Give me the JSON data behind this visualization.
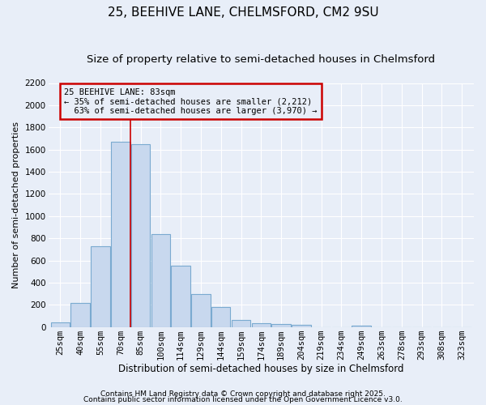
{
  "title1": "25, BEEHIVE LANE, CHELMSFORD, CM2 9SU",
  "title2": "Size of property relative to semi-detached houses in Chelmsford",
  "xlabel": "Distribution of semi-detached houses by size in Chelmsford",
  "ylabel": "Number of semi-detached properties",
  "categories": [
    "25sqm",
    "40sqm",
    "55sqm",
    "70sqm",
    "85sqm",
    "100sqm",
    "114sqm",
    "129sqm",
    "144sqm",
    "159sqm",
    "174sqm",
    "189sqm",
    "204sqm",
    "219sqm",
    "234sqm",
    "249sqm",
    "263sqm",
    "278sqm",
    "293sqm",
    "308sqm",
    "323sqm"
  ],
  "values": [
    40,
    220,
    730,
    1670,
    1650,
    840,
    555,
    295,
    180,
    65,
    35,
    25,
    20,
    0,
    0,
    15,
    0,
    0,
    0,
    0,
    0
  ],
  "bar_color": "#c8d8ee",
  "bar_edge_color": "#7aaad0",
  "vline_color": "#cc0000",
  "annotation_title": "25 BEEHIVE LANE: 83sqm",
  "annotation_line1": "← 35% of semi-detached houses are smaller (2,212)",
  "annotation_line2": "  63% of semi-detached houses are larger (3,970) →",
  "annotation_box_edge": "#cc0000",
  "ylim": [
    0,
    2200
  ],
  "yticks": [
    0,
    200,
    400,
    600,
    800,
    1000,
    1200,
    1400,
    1600,
    1800,
    2000,
    2200
  ],
  "background_color": "#e8eef8",
  "footer1": "Contains HM Land Registry data © Crown copyright and database right 2025.",
  "footer2": "Contains public sector information licensed under the Open Government Licence v3.0.",
  "title1_fontsize": 11,
  "title2_fontsize": 9.5,
  "tick_fontsize": 7.5,
  "ylabel_fontsize": 8,
  "xlabel_fontsize": 8.5,
  "footer_fontsize": 6.5,
  "annot_fontsize": 7.5,
  "vline_x_index": 3.5
}
